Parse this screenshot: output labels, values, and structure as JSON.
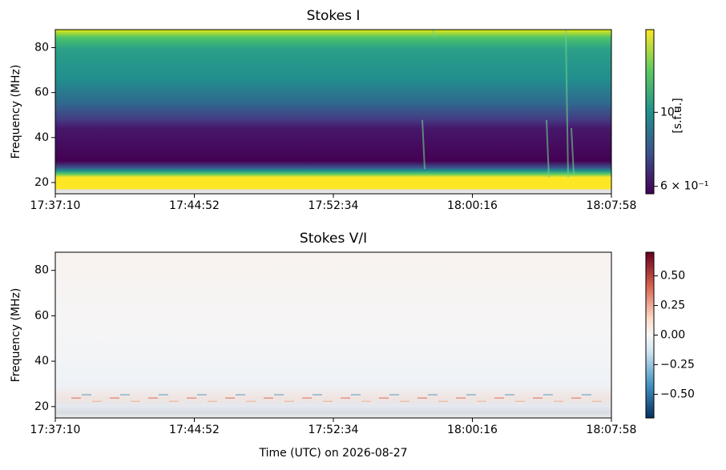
{
  "chart_data": [
    {
      "type": "heatmap",
      "title": "Stokes I",
      "ylabel": "Frequency (MHz)",
      "xlim": [
        "17:37:10",
        "18:07:58"
      ],
      "xticks": [
        "17:37:10",
        "17:44:52",
        "17:52:34",
        "18:00:16",
        "18:07:58"
      ],
      "ylim": [
        15,
        88
      ],
      "yticks": [
        20,
        40,
        60,
        80
      ],
      "colormap": "viridis",
      "colorbar_label": "[s.f.u.]",
      "colorbar_log": true,
      "clim": [
        0.57,
        1.77
      ],
      "colorbar_ticks": [
        {
          "value": 1,
          "label": "10⁰"
        },
        {
          "value": 0.6,
          "label": "6 × 10⁻¹"
        }
      ]
    },
    {
      "type": "heatmap",
      "title": "Stokes V/I",
      "ylabel": "Frequency (MHz)",
      "xlabel": "Time (UTC) on 2026-08-27",
      "xlim": [
        "17:37:10",
        "18:07:58"
      ],
      "xticks": [
        "17:37:10",
        "17:44:52",
        "17:52:34",
        "18:00:16",
        "18:07:58"
      ],
      "ylim": [
        15,
        88
      ],
      "yticks": [
        20,
        40,
        60,
        80
      ],
      "colormap": "RdBu_r",
      "colorbar_log": false,
      "clim": [
        -0.7,
        0.7
      ],
      "colorbar_ticks": [
        {
          "value": 0.5,
          "label": "0.50"
        },
        {
          "value": 0.25,
          "label": "0.25"
        },
        {
          "value": 0,
          "label": "0.00"
        },
        {
          "value": -0.25,
          "label": "−0.25"
        },
        {
          "value": -0.5,
          "label": "−0.50"
        }
      ]
    }
  ]
}
